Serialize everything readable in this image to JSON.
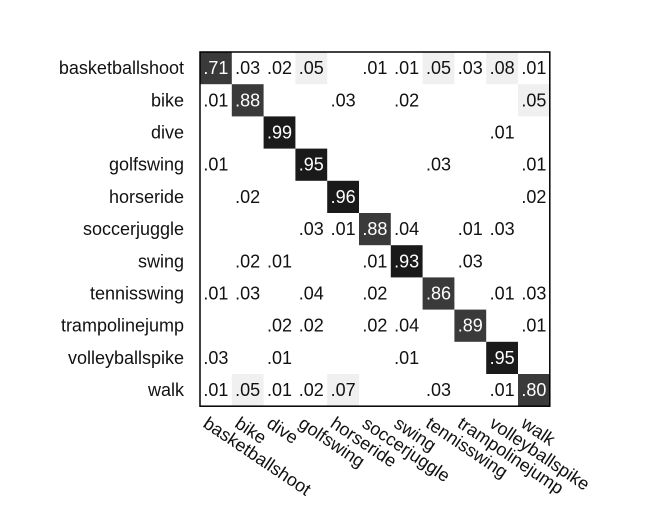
{
  "chart_data": {
    "type": "heatmap",
    "rows": [
      "basketballshoot",
      "bike",
      "dive",
      "golfswing",
      "horseride",
      "soccerjuggle",
      "swing",
      "tennisswing",
      "trampolinejump",
      "volleyballspike",
      "walk"
    ],
    "cols": [
      "basketballshoot",
      "bike",
      "dive",
      "golfswing",
      "horseride",
      "soccerjuggle",
      "swing",
      "tennisswing",
      "trampolinejump",
      "volleyballspike",
      "walk"
    ],
    "labels": [
      [
        ".71",
        ".03",
        ".02",
        ".05",
        "",
        ".01",
        ".01",
        ".05",
        ".03",
        ".08",
        ".01"
      ],
      [
        ".01",
        ".88",
        "",
        "",
        ".03",
        "",
        ".02",
        "",
        "",
        "",
        ".05"
      ],
      [
        "",
        "",
        ".99",
        "",
        "",
        "",
        "",
        "",
        "",
        ".01",
        ""
      ],
      [
        ".01",
        "",
        "",
        ".95",
        "",
        "",
        "",
        ".03",
        "",
        "",
        ".01"
      ],
      [
        "",
        ".02",
        "",
        "",
        ".96",
        "",
        "",
        "",
        "",
        "",
        ".02"
      ],
      [
        "",
        "",
        "",
        ".03",
        ".01",
        ".88",
        ".04",
        "",
        ".01",
        ".03",
        ""
      ],
      [
        "",
        ".02",
        ".01",
        "",
        "",
        ".01",
        ".93",
        "",
        ".03",
        "",
        ""
      ],
      [
        ".01",
        ".03",
        "",
        ".04",
        "",
        ".02",
        "",
        ".86",
        "",
        ".01",
        ".03"
      ],
      [
        "",
        "",
        ".02",
        ".02",
        "",
        ".02",
        ".04",
        "",
        ".89",
        "",
        ".01"
      ],
      [
        ".03",
        "",
        ".01",
        "",
        "",
        "",
        ".01",
        "",
        "",
        ".95",
        ""
      ],
      [
        ".01",
        ".05",
        ".01",
        ".02",
        ".07",
        "",
        "",
        ".03",
        "",
        ".01",
        ".80"
      ]
    ],
    "colors": {
      "diagonal_dark": "#1a1a1a",
      "diagonal_mid": "#3a3a3a",
      "offdiag_light": "#f0f0f0",
      "text_dark": "#111111",
      "text_light": "#ffffff",
      "border": "#000000"
    }
  }
}
